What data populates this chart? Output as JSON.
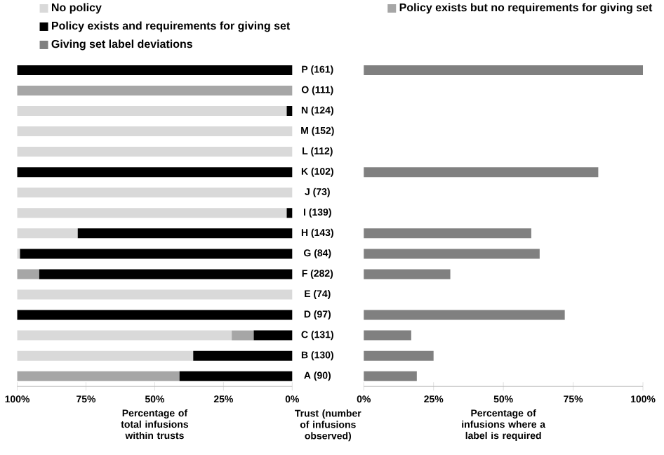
{
  "chart_data": [
    {
      "type": "bar",
      "orientation": "horizontal",
      "stacked": true,
      "legend": "top",
      "categories": [
        "P (161)",
        "O (111)",
        "N (124)",
        "M (152)",
        "L (112)",
        "K (102)",
        "J (73)",
        "I (139)",
        "H (143)",
        "G (84)",
        "F (282)",
        "E (74)",
        "D (97)",
        "C (131)",
        "B (130)",
        "A (90)"
      ],
      "series": [
        {
          "name": "Policy exists and requirements for giving set",
          "color": "#000000",
          "values": [
            100,
            0,
            2,
            0,
            0,
            100,
            0,
            2,
            78,
            99,
            92,
            0,
            100,
            14,
            36,
            41
          ]
        },
        {
          "name": "Policy exists but no requirements for giving set",
          "color": "#a6a6a6",
          "values": [
            0,
            100,
            0,
            0,
            0,
            0,
            0,
            0,
            0,
            0,
            8,
            0,
            0,
            8,
            0,
            59
          ]
        },
        {
          "name": "No policy",
          "color": "#d9d9d9",
          "values": [
            0,
            0,
            98,
            100,
            100,
            0,
            100,
            98,
            22,
            1,
            0,
            100,
            0,
            78,
            64,
            0
          ]
        }
      ],
      "xlim": [
        100,
        0
      ],
      "xticks": [
        {
          "value": 100,
          "label": "100%"
        },
        {
          "value": 75,
          "label": "75%"
        },
        {
          "value": 50,
          "label": "50%"
        },
        {
          "value": 25,
          "label": "25%"
        },
        {
          "value": 0,
          "label": "0%"
        }
      ],
      "xlabel": "Percentage of total infusions within trusts",
      "ylabel": "Trust (number of infusions observed)"
    },
    {
      "type": "bar",
      "orientation": "horizontal",
      "legend": "top",
      "tick_labels": "x",
      "categories": [
        null,
        null,
        null,
        null,
        null,
        null,
        null,
        null,
        null,
        null,
        null,
        null,
        null,
        null,
        null,
        null
      ],
      "series": [
        {
          "name": "Giving set label deviations",
          "color": "#808080",
          "values": [
            100,
            null,
            null,
            null,
            null,
            84,
            null,
            null,
            60,
            63,
            31,
            null,
            72,
            17,
            25,
            19
          ]
        }
      ],
      "xlim": [
        0,
        100
      ],
      "xticks": [
        {
          "value": 0,
          "label": "0%"
        },
        {
          "value": 25,
          "label": "25%"
        },
        {
          "value": 50,
          "label": "50%"
        },
        {
          "value": 75,
          "label": "75%"
        },
        {
          "value": 100,
          "label": "100%"
        }
      ],
      "xlabel": "Percentage of infusions where a label is required"
    }
  ]
}
